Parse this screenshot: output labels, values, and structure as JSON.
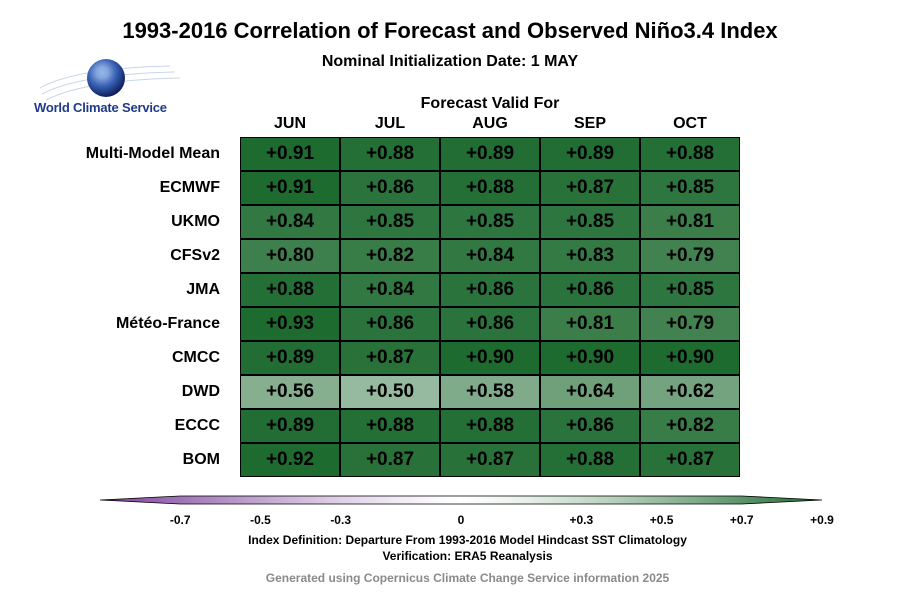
{
  "header": {
    "title": "1993-2016 Correlation of Forecast and Observed Niño3.4 Index",
    "subtitle": "Nominal Initialization Date: 1 MAY",
    "logo_text": "World Climate Service"
  },
  "chart_data": {
    "type": "heatmap",
    "title": "1993-2016 Correlation of Forecast and Observed Niño3.4 Index",
    "subtitle": "Nominal Initialization Date: 1 MAY",
    "xlabel": "Forecast Valid For",
    "columns": [
      "JUN",
      "JUL",
      "AUG",
      "SEP",
      "OCT"
    ],
    "rows": [
      "Multi-Model Mean",
      "ECMWF",
      "UKMO",
      "CFSv2",
      "JMA",
      "Météo-France",
      "CMCC",
      "DWD",
      "ECCC",
      "BOM"
    ],
    "values": [
      [
        0.91,
        0.88,
        0.89,
        0.89,
        0.88
      ],
      [
        0.91,
        0.86,
        0.88,
        0.87,
        0.85
      ],
      [
        0.84,
        0.85,
        0.85,
        0.85,
        0.81
      ],
      [
        0.8,
        0.82,
        0.84,
        0.83,
        0.79
      ],
      [
        0.88,
        0.84,
        0.86,
        0.86,
        0.85
      ],
      [
        0.93,
        0.86,
        0.86,
        0.81,
        0.79
      ],
      [
        0.89,
        0.87,
        0.9,
        0.9,
        0.9
      ],
      [
        0.56,
        0.5,
        0.58,
        0.64,
        0.62
      ],
      [
        0.89,
        0.88,
        0.88,
        0.86,
        0.82
      ],
      [
        0.92,
        0.87,
        0.87,
        0.88,
        0.87
      ]
    ],
    "labels": [
      [
        "+0.91",
        "+0.88",
        "+0.89",
        "+0.89",
        "+0.88"
      ],
      [
        "+0.91",
        "+0.86",
        "+0.88",
        "+0.87",
        "+0.85"
      ],
      [
        "+0.84",
        "+0.85",
        "+0.85",
        "+0.85",
        "+0.81"
      ],
      [
        "+0.80",
        "+0.82",
        "+0.84",
        "+0.83",
        "+0.79"
      ],
      [
        "+0.88",
        "+0.84",
        "+0.86",
        "+0.86",
        "+0.85"
      ],
      [
        "+0.93",
        "+0.86",
        "+0.86",
        "+0.81",
        "+0.79"
      ],
      [
        "+0.89",
        "+0.87",
        "+0.90",
        "+0.90",
        "+0.90"
      ],
      [
        "+0.56",
        "+0.50",
        "+0.58",
        "+0.64",
        "+0.62"
      ],
      [
        "+0.89",
        "+0.88",
        "+0.88",
        "+0.86",
        "+0.82"
      ],
      [
        "+0.92",
        "+0.87",
        "+0.87",
        "+0.88",
        "+0.87"
      ]
    ],
    "colorbar": {
      "range": [
        -0.9,
        0.9
      ],
      "ticks": [
        -0.7,
        -0.5,
        -0.3,
        0,
        0.3,
        0.5,
        0.7,
        0.9
      ],
      "tick_labels": [
        "-0.7",
        "-0.5",
        "-0.3",
        "0",
        "+0.3",
        "+0.5",
        "+0.7",
        "+0.9"
      ],
      "low_color": "#7b3f9a",
      "mid_color": "#ffffff",
      "high_color": "#1e6b30"
    }
  },
  "footer": {
    "definition": "Index Definition: Departure From 1993-2016 Model Hindcast SST Climatology",
    "verification": "Verification: ERA5 Reanalysis",
    "credit": "Generated using Copernicus Climate Change Service information 2025"
  }
}
